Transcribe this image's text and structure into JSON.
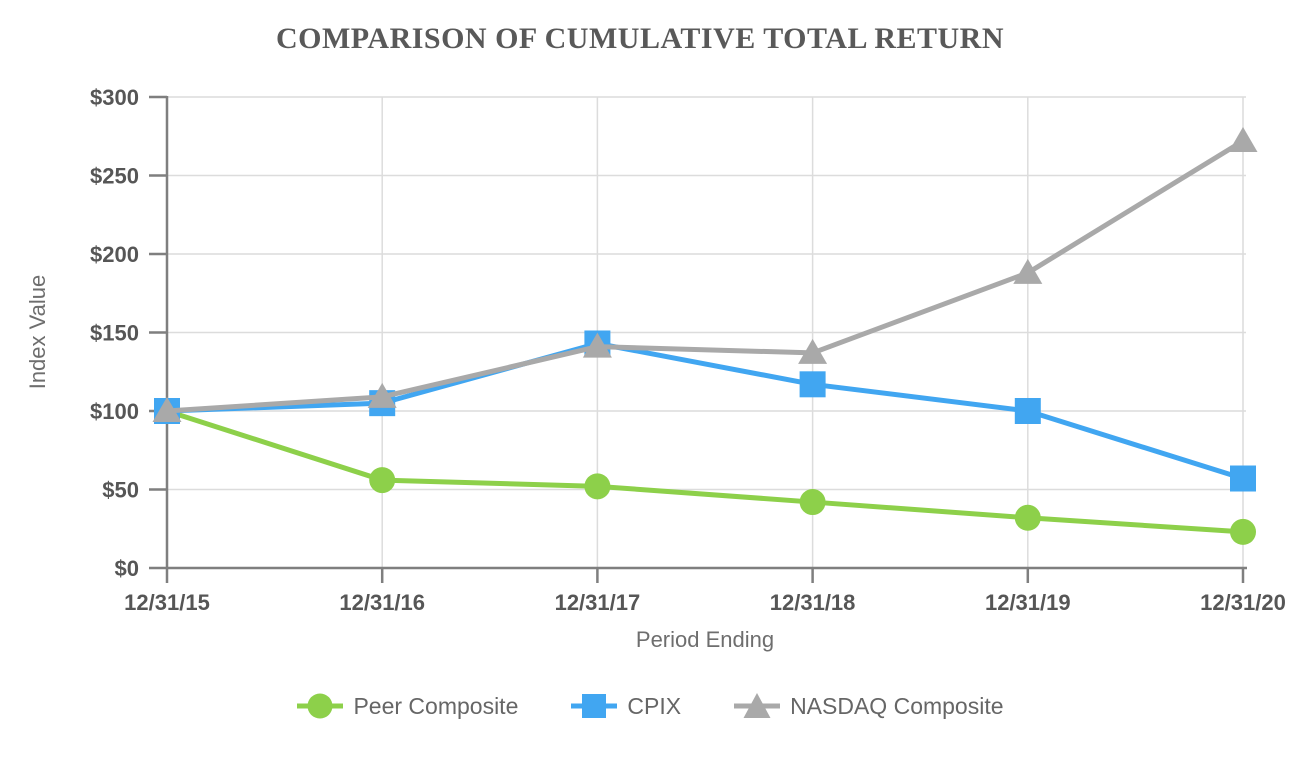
{
  "chart_data": {
    "type": "line",
    "title": "COMPARISON OF CUMULATIVE TOTAL RETURN",
    "xlabel": "Period Ending",
    "ylabel": "Index Value",
    "categories": [
      "12/31/15",
      "12/31/16",
      "12/31/17",
      "12/31/18",
      "12/31/19",
      "12/31/20"
    ],
    "y_tick_labels": [
      "$0",
      "$50",
      "$100",
      "$150",
      "$200",
      "$250",
      "$300"
    ],
    "ylim": [
      0,
      300
    ],
    "grid": true,
    "legend_position": "bottom",
    "series": [
      {
        "name": "Peer Composite",
        "marker": "circle",
        "color": "#8dd04a",
        "values": [
          100,
          56,
          52,
          42,
          32,
          23
        ]
      },
      {
        "name": "CPIX",
        "marker": "square",
        "color": "#41a6f1",
        "values": [
          100,
          105,
          143,
          117,
          100,
          57
        ]
      },
      {
        "name": "NASDAQ Composite",
        "marker": "triangle",
        "color": "#a9a9a9",
        "values": [
          100,
          109,
          141,
          137,
          188,
          272
        ]
      }
    ]
  },
  "style": {
    "grid_color": "#dcdcdc",
    "axis_color": "#7f7f7f",
    "tick_label_color": "#565656",
    "title_color": "#595959",
    "axis_title_color": "#6e6e6e"
  }
}
